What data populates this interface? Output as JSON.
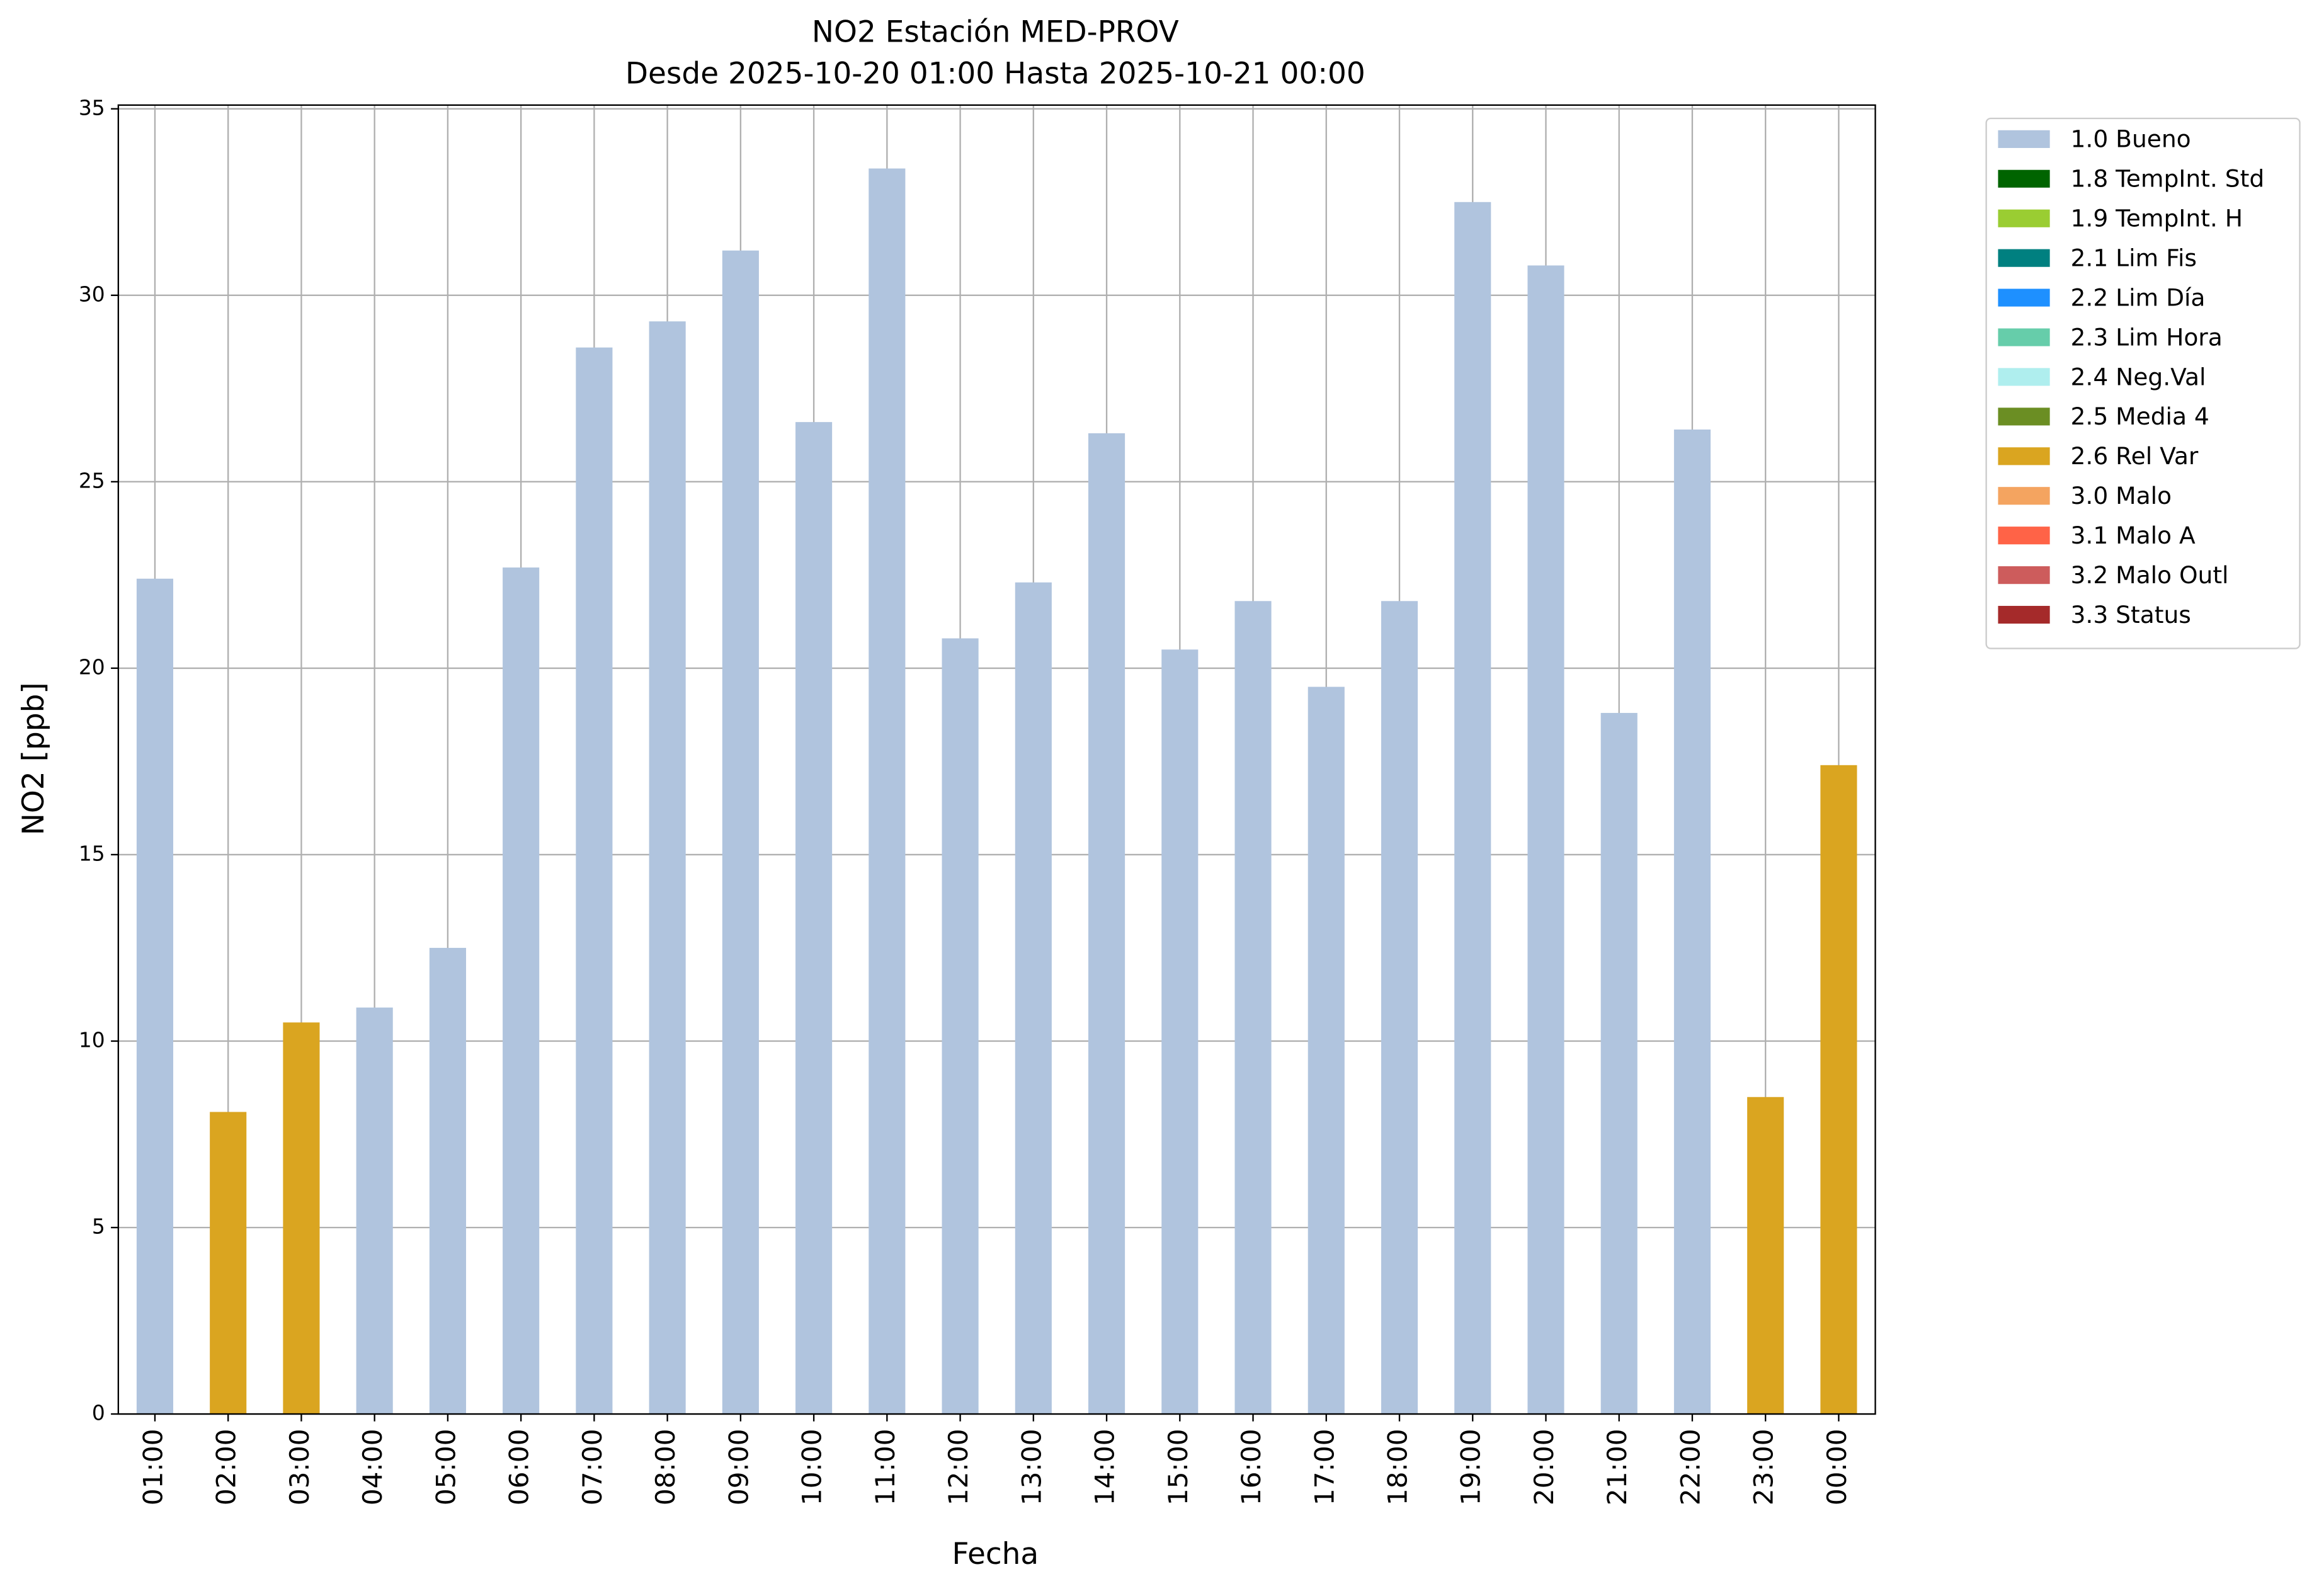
{
  "chart_data": {
    "type": "bar",
    "stacked": true,
    "title": "NO2 Estación MED-PROV",
    "subtitle": "Desde 2025-10-20 01:00 Hasta 2025-10-21 00:00",
    "xlabel": "Fecha",
    "ylabel": "NO2 [ppb]",
    "categories": [
      "01:00",
      "02:00",
      "03:00",
      "04:00",
      "05:00",
      "06:00",
      "07:00",
      "08:00",
      "09:00",
      "10:00",
      "11:00",
      "12:00",
      "13:00",
      "14:00",
      "15:00",
      "16:00",
      "17:00",
      "18:00",
      "19:00",
      "20:00",
      "21:00",
      "22:00",
      "23:00",
      "00:00"
    ],
    "series": [
      {
        "name": "1.0 Bueno",
        "color": "#b0c4de",
        "values": [
          22.4,
          null,
          null,
          10.9,
          12.5,
          22.7,
          28.6,
          29.3,
          31.2,
          26.6,
          33.4,
          20.8,
          22.3,
          26.3,
          20.5,
          21.8,
          19.5,
          21.8,
          32.5,
          30.8,
          18.8,
          26.4,
          null,
          null
        ]
      },
      {
        "name": "1.8 TempInt. Std",
        "color": "#006400",
        "values": [
          null,
          null,
          null,
          null,
          null,
          null,
          null,
          null,
          null,
          null,
          null,
          null,
          null,
          null,
          null,
          null,
          null,
          null,
          null,
          null,
          null,
          null,
          null,
          null
        ]
      },
      {
        "name": "1.9 TempInt. H",
        "color": "#9acd32",
        "values": [
          null,
          null,
          null,
          null,
          null,
          null,
          null,
          null,
          null,
          null,
          null,
          null,
          null,
          null,
          null,
          null,
          null,
          null,
          null,
          null,
          null,
          null,
          null,
          null
        ]
      },
      {
        "name": "2.1 Lim Fis",
        "color": "#008080",
        "values": [
          null,
          null,
          null,
          null,
          null,
          null,
          null,
          null,
          null,
          null,
          null,
          null,
          null,
          null,
          null,
          null,
          null,
          null,
          null,
          null,
          null,
          null,
          null,
          null
        ]
      },
      {
        "name": "2.2 Lim Día",
        "color": "#1e90ff",
        "values": [
          null,
          null,
          null,
          null,
          null,
          null,
          null,
          null,
          null,
          null,
          null,
          null,
          null,
          null,
          null,
          null,
          null,
          null,
          null,
          null,
          null,
          null,
          null,
          null
        ]
      },
      {
        "name": "2.3 Lim Hora",
        "color": "#66cdaa",
        "values": [
          null,
          null,
          null,
          null,
          null,
          null,
          null,
          null,
          null,
          null,
          null,
          null,
          null,
          null,
          null,
          null,
          null,
          null,
          null,
          null,
          null,
          null,
          null,
          null
        ]
      },
      {
        "name": "2.4 Neg.Val",
        "color": "#afeeee",
        "values": [
          null,
          null,
          null,
          null,
          null,
          null,
          null,
          null,
          null,
          null,
          null,
          null,
          null,
          null,
          null,
          null,
          null,
          null,
          null,
          null,
          null,
          null,
          null,
          null
        ]
      },
      {
        "name": "2.5 Media 4",
        "color": "#6b8e23",
        "values": [
          null,
          null,
          null,
          null,
          null,
          null,
          null,
          null,
          null,
          null,
          null,
          null,
          null,
          null,
          null,
          null,
          null,
          null,
          null,
          null,
          null,
          null,
          null,
          null
        ]
      },
      {
        "name": "2.6 Rel Var",
        "color": "#daa520",
        "values": [
          null,
          8.1,
          10.5,
          null,
          null,
          null,
          null,
          null,
          null,
          null,
          null,
          null,
          null,
          null,
          null,
          null,
          null,
          null,
          null,
          null,
          null,
          null,
          8.5,
          17.4
        ]
      },
      {
        "name": "3.0 Malo",
        "color": "#f4a460",
        "values": [
          null,
          null,
          null,
          null,
          null,
          null,
          null,
          null,
          null,
          null,
          null,
          null,
          null,
          null,
          null,
          null,
          null,
          null,
          null,
          null,
          null,
          null,
          null,
          null
        ]
      },
      {
        "name": "3.1 Malo A",
        "color": "#ff6347",
        "values": [
          null,
          null,
          null,
          null,
          null,
          null,
          null,
          null,
          null,
          null,
          null,
          null,
          null,
          null,
          null,
          null,
          null,
          null,
          null,
          null,
          null,
          null,
          null,
          null
        ]
      },
      {
        "name": "3.2 Malo Outl",
        "color": "#cd5c5c",
        "values": [
          null,
          null,
          null,
          null,
          null,
          null,
          null,
          null,
          null,
          null,
          null,
          null,
          null,
          null,
          null,
          null,
          null,
          null,
          null,
          null,
          null,
          null,
          null,
          null
        ]
      },
      {
        "name": "3.3 Status",
        "color": "#a52a2a",
        "values": [
          null,
          null,
          null,
          null,
          null,
          null,
          null,
          null,
          null,
          null,
          null,
          null,
          null,
          null,
          null,
          null,
          null,
          null,
          null,
          null,
          null,
          null,
          null,
          null
        ]
      }
    ],
    "ylim": [
      0,
      35.1
    ],
    "yticks": [
      0,
      5,
      10,
      15,
      20,
      25,
      30,
      35
    ],
    "grid": true,
    "legend": "outside right"
  }
}
